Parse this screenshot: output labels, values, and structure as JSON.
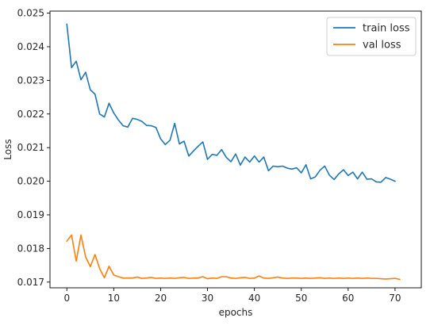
{
  "chart_data": {
    "type": "line",
    "xlabel": "epochs",
    "ylabel": "Loss",
    "xlim": [
      -3.6,
      75.6
    ],
    "ylim": [
      0.01683,
      0.02506
    ],
    "xticks": [
      0,
      10,
      20,
      30,
      40,
      50,
      60,
      70
    ],
    "yticks": [
      0.017,
      0.018,
      0.019,
      0.02,
      0.021,
      0.022,
      0.023,
      0.024,
      0.025
    ],
    "ytick_labels": [
      "0.017",
      "0.018",
      "0.019",
      "0.020",
      "0.021",
      "0.022",
      "0.023",
      "0.024",
      "0.025"
    ],
    "grid": false,
    "legend_position": "top-right",
    "colors": {
      "train": "#1f77b4",
      "val": "#ff7f0e",
      "axis": "#000000"
    },
    "series": [
      {
        "name": "train loss",
        "color": "#1f77b4",
        "values": [
          0.02467,
          0.02338,
          0.02357,
          0.02302,
          0.02324,
          0.02272,
          0.02259,
          0.022,
          0.02191,
          0.02232,
          0.02203,
          0.02182,
          0.02165,
          0.02161,
          0.02187,
          0.02184,
          0.02178,
          0.02166,
          0.02165,
          0.0216,
          0.02126,
          0.02109,
          0.02122,
          0.02172,
          0.02111,
          0.02119,
          0.02075,
          0.0209,
          0.02104,
          0.02117,
          0.02065,
          0.0208,
          0.02077,
          0.02094,
          0.02071,
          0.02058,
          0.02081,
          0.02048,
          0.02072,
          0.02057,
          0.02075,
          0.02057,
          0.02072,
          0.02031,
          0.02045,
          0.02043,
          0.02045,
          0.02039,
          0.02036,
          0.0204,
          0.02025,
          0.02049,
          0.02007,
          0.02013,
          0.02033,
          0.02045,
          0.02018,
          0.02005,
          0.02022,
          0.02034,
          0.02017,
          0.02027,
          0.02007,
          0.02027,
          0.02006,
          0.02007,
          0.01998,
          0.01997,
          0.02011,
          0.02006,
          0.02
        ]
      },
      {
        "name": "val loss",
        "color": "#ff7f0e",
        "values": [
          0.01822,
          0.0184,
          0.01762,
          0.0184,
          0.01775,
          0.01746,
          0.01782,
          0.0174,
          0.01713,
          0.01747,
          0.01721,
          0.01716,
          0.01712,
          0.01712,
          0.01712,
          0.01715,
          0.01711,
          0.01712,
          0.01714,
          0.01711,
          0.01712,
          0.01711,
          0.01712,
          0.01711,
          0.01713,
          0.01714,
          0.01711,
          0.01712,
          0.01712,
          0.01716,
          0.0171,
          0.01712,
          0.01711,
          0.01716,
          0.01716,
          0.01712,
          0.01711,
          0.01713,
          0.01714,
          0.01711,
          0.01712,
          0.01718,
          0.01712,
          0.01711,
          0.01713,
          0.01715,
          0.01712,
          0.01711,
          0.01712,
          0.01712,
          0.01711,
          0.01712,
          0.01711,
          0.01712,
          0.01713,
          0.01711,
          0.01712,
          0.01711,
          0.01712,
          0.01711,
          0.01712,
          0.01711,
          0.01712,
          0.01711,
          0.01712,
          0.01711,
          0.01711,
          0.0171,
          0.01709,
          0.0171,
          0.01711,
          0.01708
        ]
      }
    ]
  }
}
